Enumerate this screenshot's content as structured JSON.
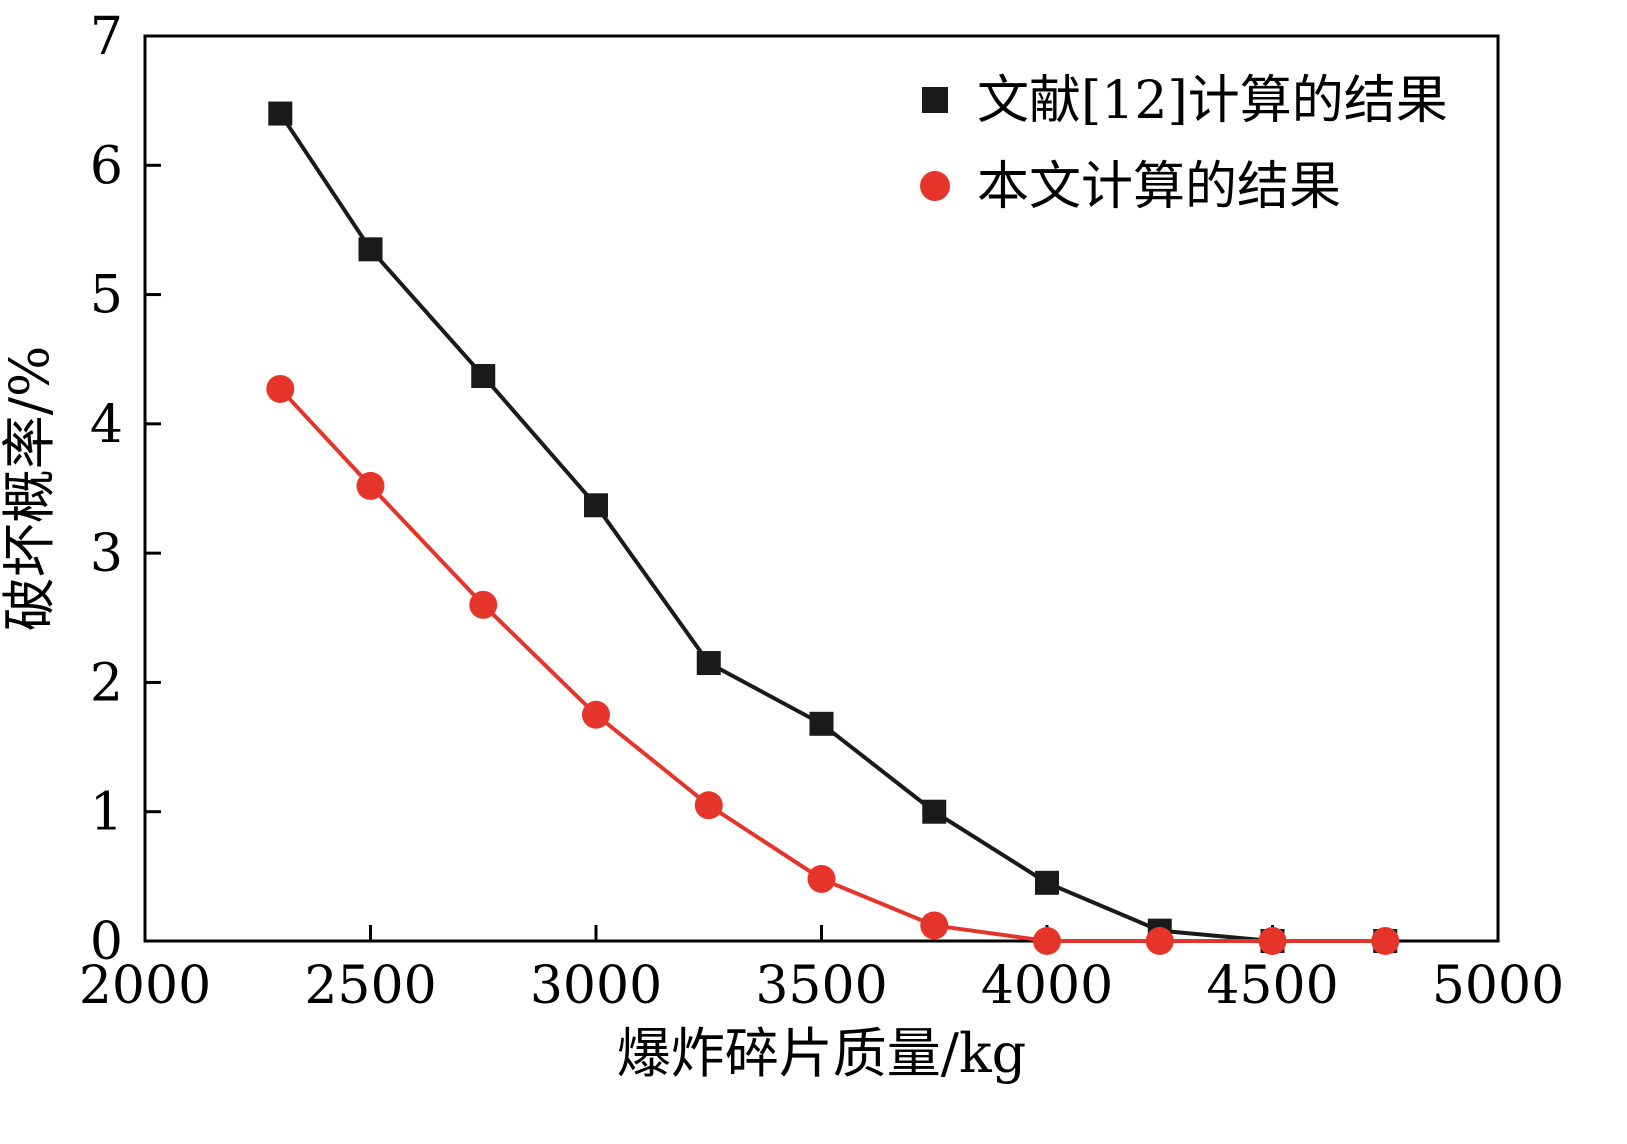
{
  "figure": {
    "background": "#ffffff"
  },
  "chart_data": {
    "type": "line",
    "title": "",
    "xlabel": "爆炸碎片质量/kg",
    "ylabel": "破坏概率/%",
    "xlim": [
      2000,
      5000
    ],
    "ylim": [
      0,
      7
    ],
    "xticks": [
      2000,
      2500,
      3000,
      3500,
      4000,
      4500,
      5000
    ],
    "yticks": [
      0,
      1,
      2,
      3,
      4,
      5,
      6,
      7
    ],
    "grid": false,
    "legend_position": "top-right-inside",
    "x": [
      2300,
      2500,
      2750,
      3000,
      3250,
      3500,
      3750,
      4000,
      4250,
      4500,
      4750
    ],
    "series": [
      {
        "name": "文献[12]计算的结果",
        "color": "#1a1a1a",
        "marker": "square",
        "values": [
          6.4,
          5.35,
          4.37,
          3.37,
          2.15,
          1.68,
          1.0,
          0.45,
          0.08,
          0.0,
          0.0
        ]
      },
      {
        "name": "本文计算的结果",
        "color": "#e5352b",
        "marker": "circle",
        "values": [
          4.27,
          3.52,
          2.6,
          1.75,
          1.05,
          0.48,
          0.12,
          0.0,
          0.0,
          0.0,
          0.0
        ]
      }
    ],
    "axis_color": "#000000",
    "text_color": "#000000"
  }
}
